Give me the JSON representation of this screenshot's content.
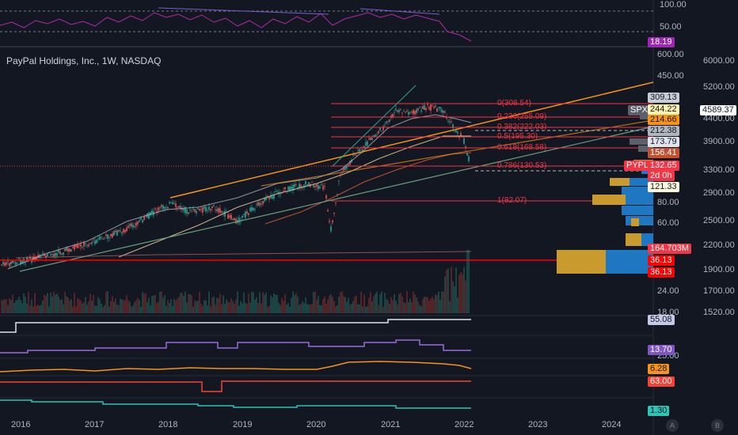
{
  "title": "PayPal Holdings, Inc., 1W, NASDAQ",
  "rsi_axis": [
    "100.00",
    "50.00"
  ],
  "rsi_value": "18.19",
  "left_axis": [
    "600.00",
    "450.00",
    "80.00",
    "60.00",
    "24.00",
    "18.00"
  ],
  "right_axis": [
    "6000.00",
    "5200.00",
    "4400.00",
    "3900.00",
    "3300.00",
    "2900.00",
    "2500.00",
    "2200.00",
    "1900.00",
    "1700.00",
    "1520.00"
  ],
  "ind_axis": [
    "25.00"
  ],
  "price_labels": {
    "p309": "309.13",
    "p244": "244.22",
    "p214": "214.66",
    "p212": "212.38",
    "p173": "173.79",
    "p156": "156.41",
    "p132": "132.65",
    "countdown": "2d 0h",
    "p121": "121.33",
    "vol": "164.703M",
    "v36a": "36.13",
    "v36b": "36.13",
    "i55": "55.08",
    "i13": "13.70",
    "i6": "6.28",
    "i63": "63.00",
    "i1": "1.30"
  },
  "spx": {
    "tag": "SPX",
    "value": "4589.37"
  },
  "pypl_tag": "PYPL",
  "fib_levels": [
    "0(308.54)",
    "0.236(255.09)",
    "0.382(222.03)",
    "0.5(195.30)",
    "0.618(168.58)",
    "0.786(130.53)",
    "1(82.07)"
  ],
  "x_axis": [
    "2016",
    "2017",
    "2018",
    "2019",
    "2020",
    "2021",
    "2022",
    "2023",
    "2024"
  ],
  "corner_buttons": [
    "A",
    "B"
  ],
  "colors": {
    "bg": "#131722",
    "up": "#26a69a",
    "down": "#ef5350",
    "fib": "#f23645",
    "orange": "#f7931a",
    "purple": "#9c27b0",
    "spx_gray": "#5d606b"
  }
}
